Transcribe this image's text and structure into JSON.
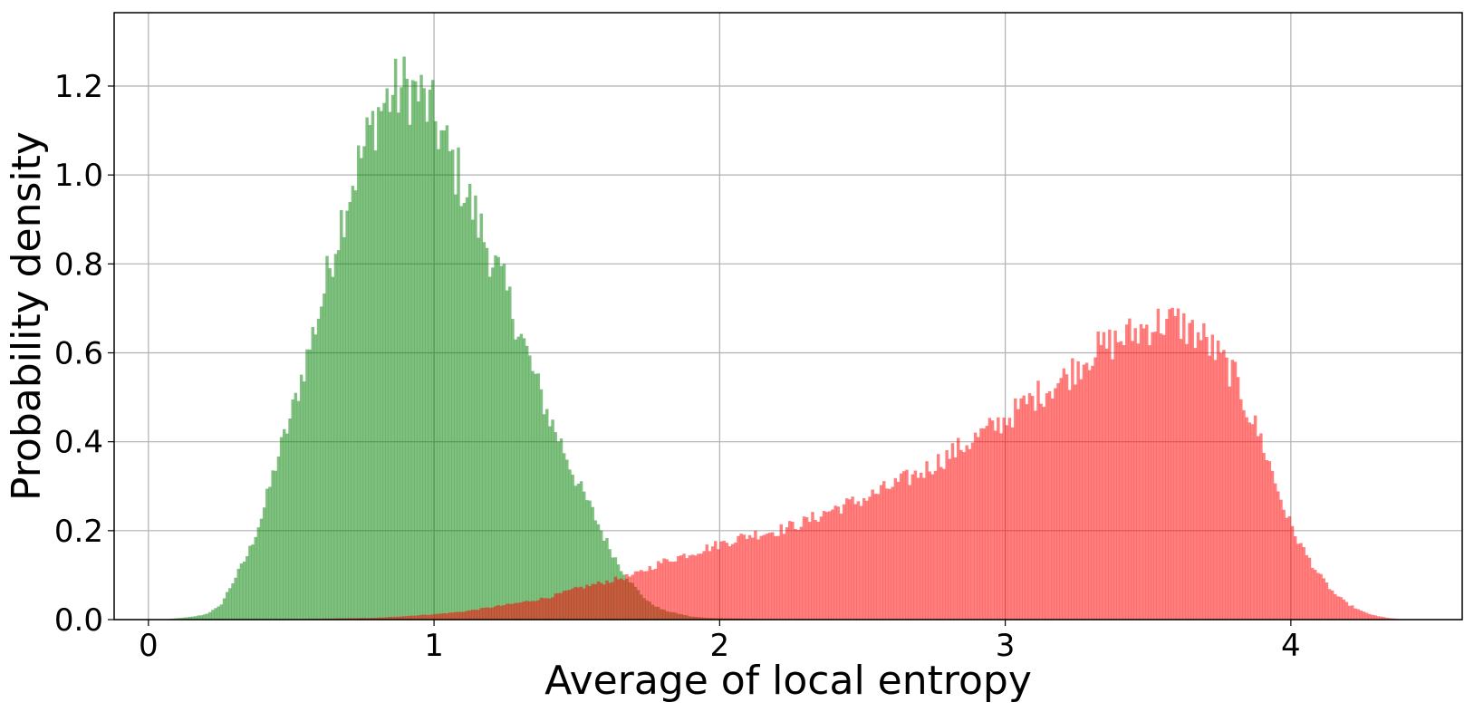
{
  "chart_data": {
    "type": "histogram",
    "title": "",
    "xlabel": "Average of local entropy",
    "ylabel": "Probability density",
    "xlim": [
      -0.12,
      4.6
    ],
    "ylim": [
      0.0,
      1.365
    ],
    "xticks": [
      0,
      1,
      2,
      3,
      4
    ],
    "xtick_labels": [
      "0",
      "1",
      "2",
      "3",
      "4"
    ],
    "yticks": [
      0.0,
      0.2,
      0.4,
      0.6,
      0.8,
      1.0,
      1.2
    ],
    "ytick_labels": [
      "0.0",
      "0.2",
      "0.4",
      "0.6",
      "0.8",
      "1.0",
      "1.2"
    ],
    "grid": true,
    "legend": "none",
    "bin_width": 0.01,
    "alpha": 0.5,
    "series": [
      {
        "color": "#008000",
        "x_start": 0.05,
        "approx_density_profile": [
          [
            0.05,
            0.0
          ],
          [
            0.1,
            0.003
          ],
          [
            0.15,
            0.006
          ],
          [
            0.2,
            0.012
          ],
          [
            0.25,
            0.03
          ],
          [
            0.3,
            0.09
          ],
          [
            0.35,
            0.15
          ],
          [
            0.4,
            0.24
          ],
          [
            0.45,
            0.36
          ],
          [
            0.5,
            0.46
          ],
          [
            0.55,
            0.58
          ],
          [
            0.6,
            0.7
          ],
          [
            0.65,
            0.84
          ],
          [
            0.7,
            0.96
          ],
          [
            0.75,
            1.05
          ],
          [
            0.8,
            1.14
          ],
          [
            0.85,
            1.18
          ],
          [
            0.9,
            1.2
          ],
          [
            0.95,
            1.18
          ],
          [
            1.0,
            1.13
          ],
          [
            1.05,
            1.05
          ],
          [
            1.1,
            0.98
          ],
          [
            1.15,
            0.9
          ],
          [
            1.2,
            0.82
          ],
          [
            1.25,
            0.74
          ],
          [
            1.3,
            0.65
          ],
          [
            1.35,
            0.55
          ],
          [
            1.4,
            0.46
          ],
          [
            1.45,
            0.39
          ],
          [
            1.5,
            0.31
          ],
          [
            1.55,
            0.25
          ],
          [
            1.6,
            0.18
          ],
          [
            1.65,
            0.12
          ],
          [
            1.7,
            0.075
          ],
          [
            1.75,
            0.04
          ],
          [
            1.8,
            0.022
          ],
          [
            1.85,
            0.014
          ],
          [
            1.9,
            0.007
          ],
          [
            1.95,
            0.004
          ],
          [
            2.0,
            0.003
          ],
          [
            2.1,
            0.002
          ],
          [
            2.2,
            0.0
          ]
        ]
      },
      {
        "color": "#ff0000",
        "x_start": 0.4,
        "approx_density_profile": [
          [
            0.4,
            0.0
          ],
          [
            0.6,
            0.002
          ],
          [
            0.8,
            0.004
          ],
          [
            1.0,
            0.012
          ],
          [
            1.1,
            0.018
          ],
          [
            1.2,
            0.028
          ],
          [
            1.3,
            0.038
          ],
          [
            1.4,
            0.05
          ],
          [
            1.5,
            0.07
          ],
          [
            1.6,
            0.085
          ],
          [
            1.7,
            0.1
          ],
          [
            1.8,
            0.13
          ],
          [
            1.9,
            0.15
          ],
          [
            2.0,
            0.17
          ],
          [
            2.1,
            0.19
          ],
          [
            2.2,
            0.2
          ],
          [
            2.3,
            0.22
          ],
          [
            2.4,
            0.25
          ],
          [
            2.5,
            0.27
          ],
          [
            2.6,
            0.3
          ],
          [
            2.7,
            0.33
          ],
          [
            2.8,
            0.37
          ],
          [
            2.9,
            0.41
          ],
          [
            3.0,
            0.45
          ],
          [
            3.1,
            0.5
          ],
          [
            3.2,
            0.54
          ],
          [
            3.3,
            0.6
          ],
          [
            3.4,
            0.63
          ],
          [
            3.5,
            0.66
          ],
          [
            3.55,
            0.67
          ],
          [
            3.6,
            0.67
          ],
          [
            3.7,
            0.63
          ],
          [
            3.8,
            0.55
          ],
          [
            3.85,
            0.47
          ],
          [
            3.9,
            0.4
          ],
          [
            3.95,
            0.3
          ],
          [
            4.0,
            0.21
          ],
          [
            4.05,
            0.15
          ],
          [
            4.1,
            0.1
          ],
          [
            4.15,
            0.06
          ],
          [
            4.2,
            0.035
          ],
          [
            4.25,
            0.018
          ],
          [
            4.3,
            0.008
          ],
          [
            4.35,
            0.003
          ],
          [
            4.4,
            0.0
          ]
        ]
      }
    ]
  }
}
